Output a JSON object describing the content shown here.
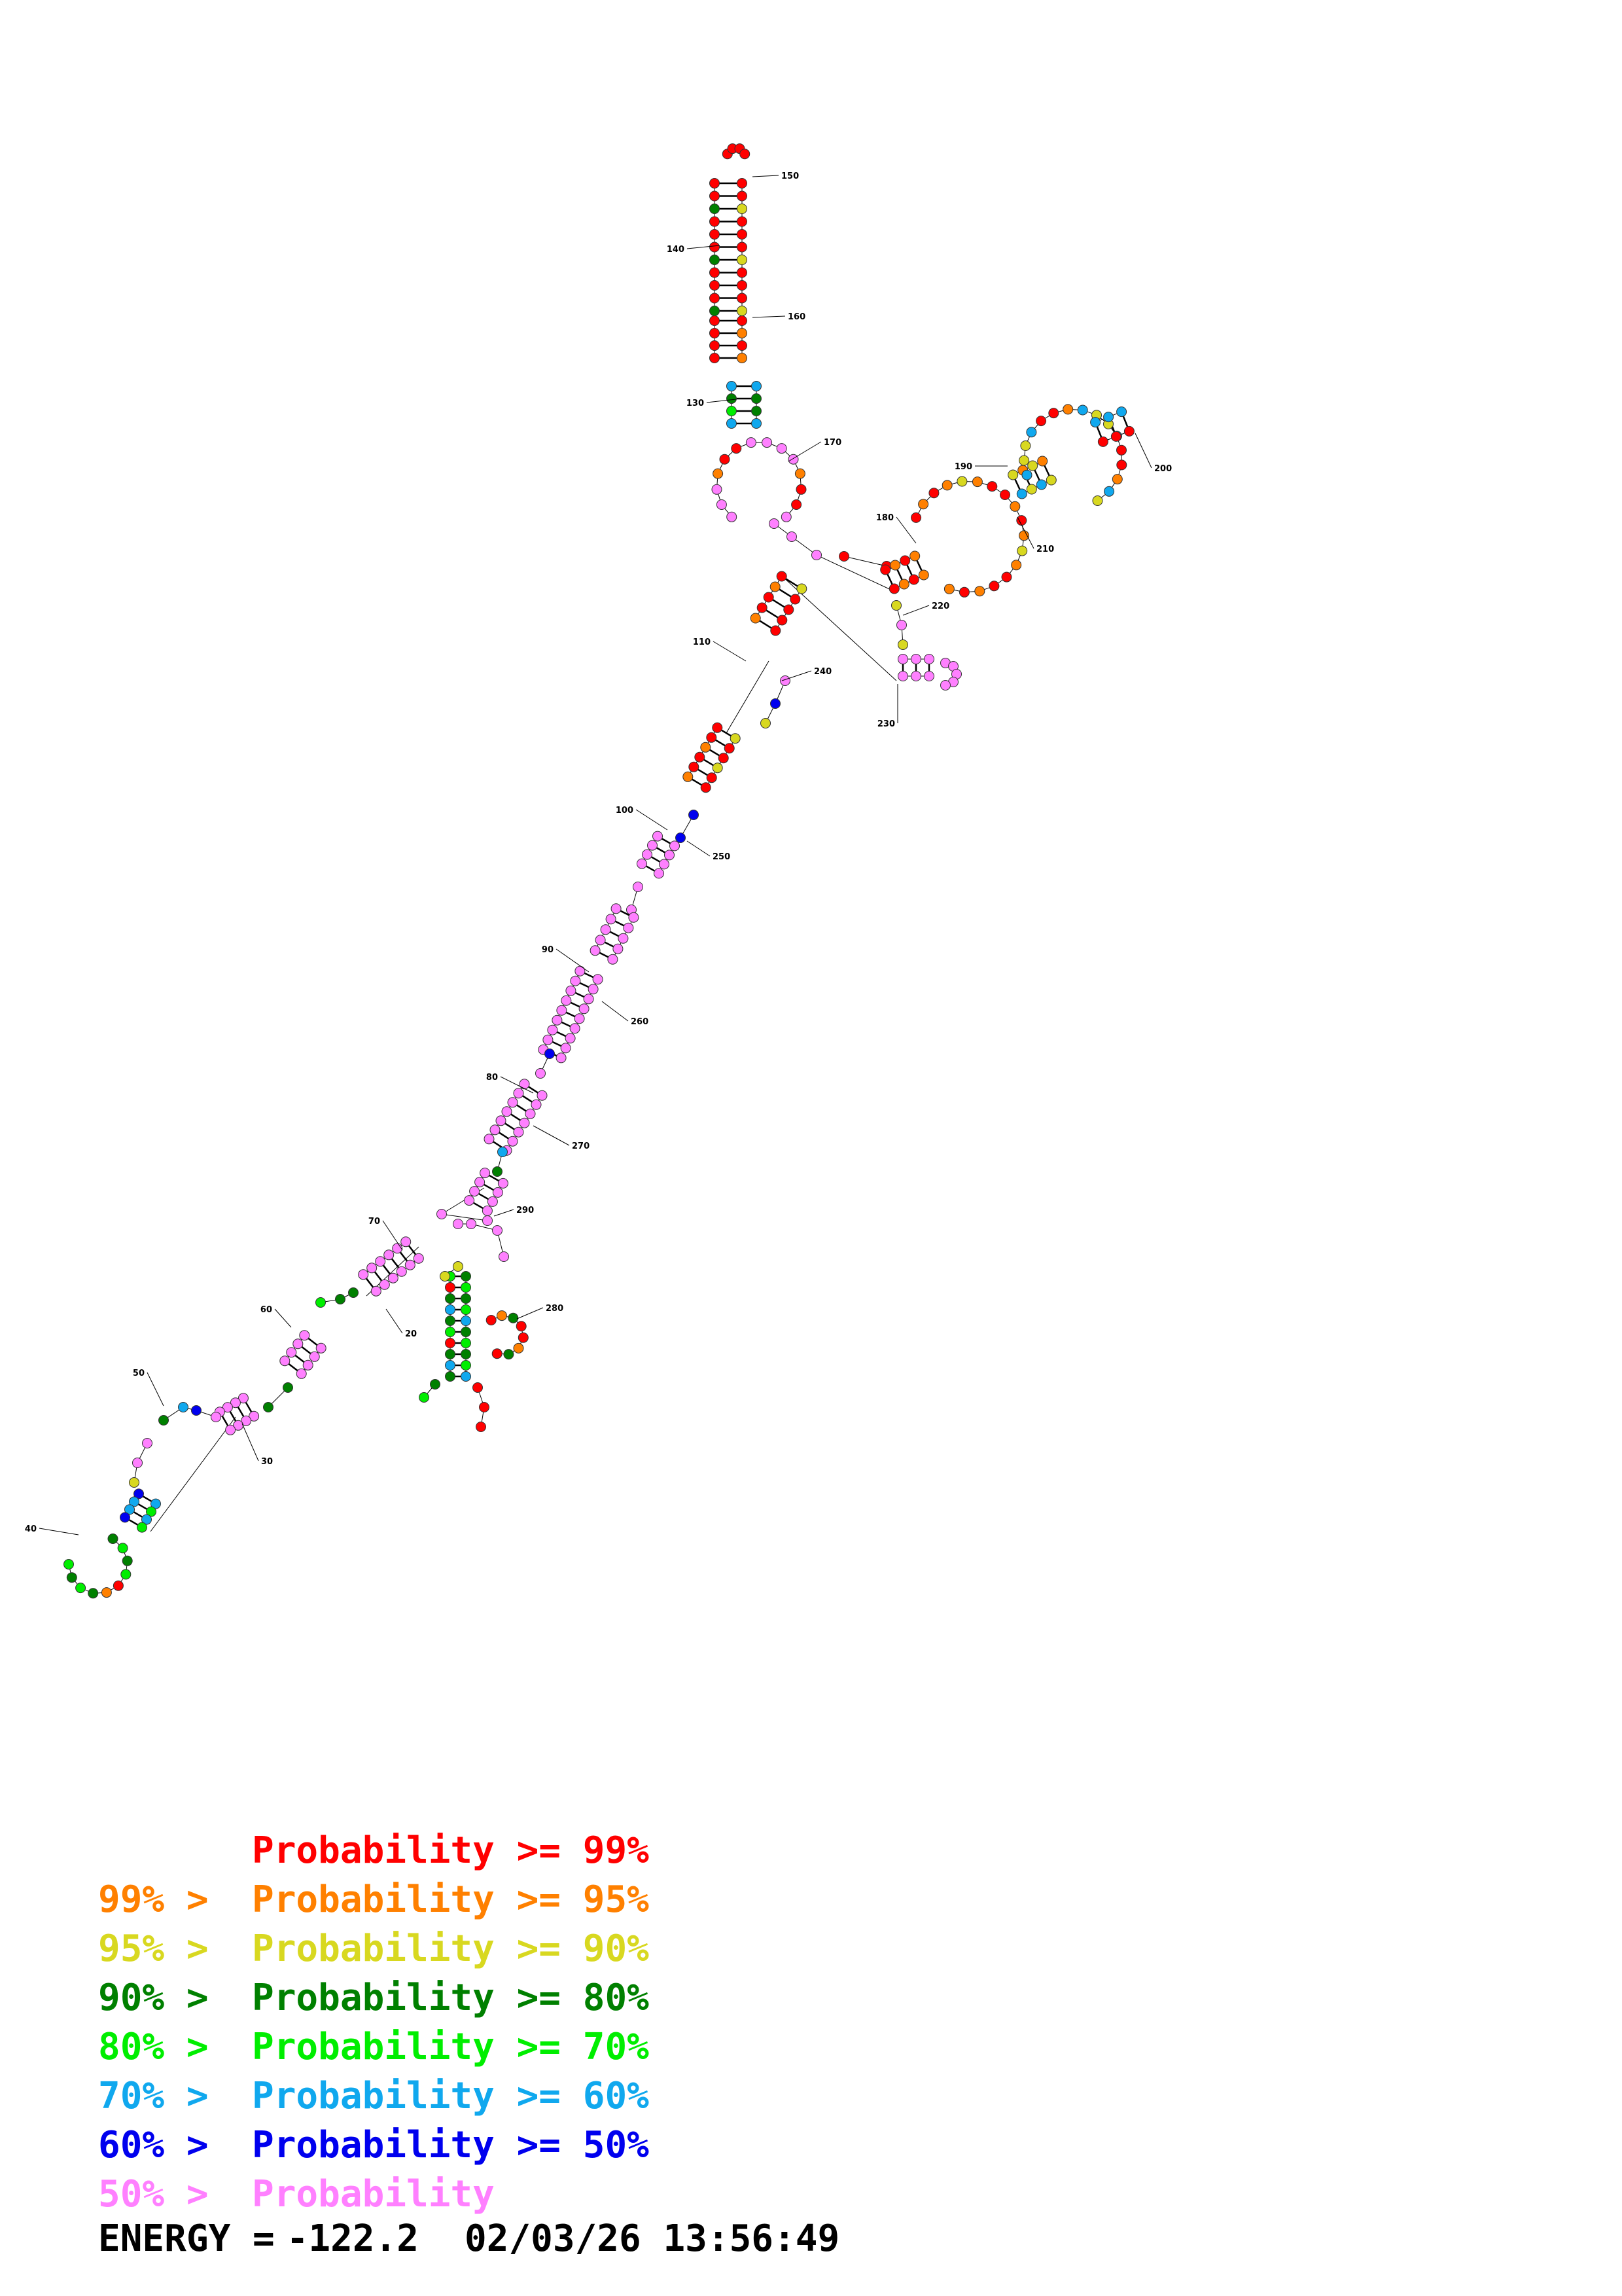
{
  "colors": {
    "p99": "#ff0000",
    "p95": "#ff8000",
    "p90": "#d8d820",
    "p80": "#008000",
    "p70": "#00ee00",
    "p60": "#10a8ee",
    "p50": "#0000ee",
    "plow": "#ff80ff",
    "line": "#000000"
  },
  "diagram": {
    "position_labels": [
      "150",
      "140",
      "160",
      "130",
      "170",
      "190",
      "200",
      "180",
      "210",
      "220",
      "110",
      "240",
      "230",
      "100",
      "250",
      "90",
      "260",
      "80",
      "270",
      "70",
      "290",
      "60",
      "20",
      "280",
      "50",
      "30",
      "40"
    ]
  },
  "legend": [
    {
      "prefix": "",
      "text": "Probability >= 99%",
      "color": "#ff0000"
    },
    {
      "prefix": "99% >",
      "text": "Probability >= 95%",
      "color": "#ff8000"
    },
    {
      "prefix": "95% >",
      "text": "Probability >= 90%",
      "color": "#d8d820"
    },
    {
      "prefix": "90% >",
      "text": "Probability >= 80%",
      "color": "#008000"
    },
    {
      "prefix": "80% >",
      "text": "Probability >= 70%",
      "color": "#00ee00"
    },
    {
      "prefix": "70% >",
      "text": "Probability >= 60%",
      "color": "#10a8ee"
    },
    {
      "prefix": "60% >",
      "text": "Probability >= 50%",
      "color": "#0000ee"
    },
    {
      "prefix": "50% >",
      "text": "Probability",
      "color": "#ff80ff"
    }
  ],
  "footer": {
    "energy_label": "ENERGY =",
    "energy_value": "-122.2",
    "timestamp": "02/03/26 13:56:49"
  }
}
